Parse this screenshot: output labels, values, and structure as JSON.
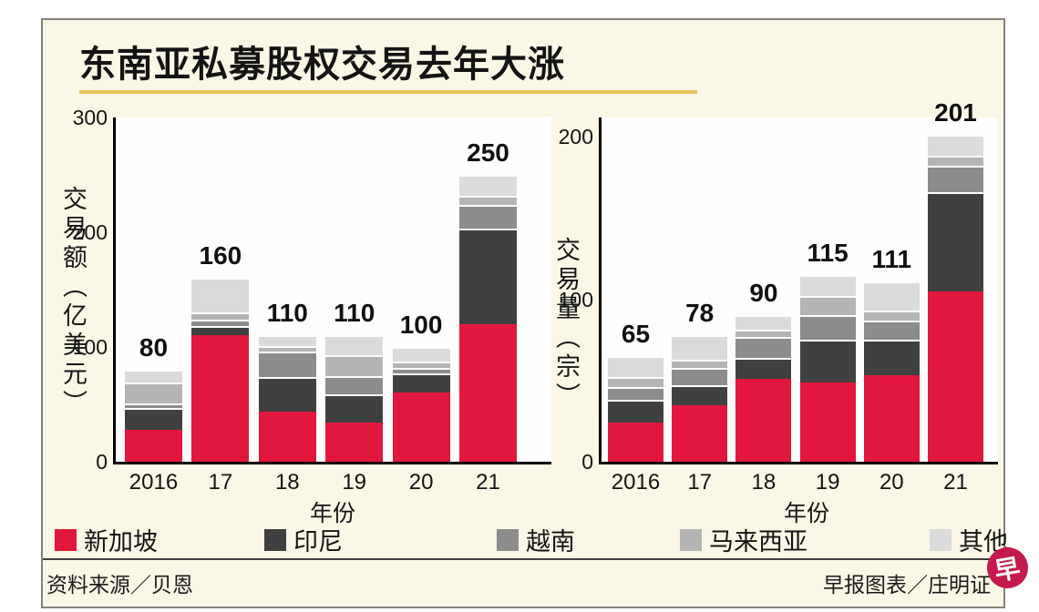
{
  "title": "东南亚私募股权交易去年大涨",
  "chart_data": [
    {
      "type": "bar",
      "stacked": true,
      "ylabel": "交易额（亿美元）",
      "xlabel": "年份",
      "y_ticks": [
        0,
        100,
        200,
        300
      ],
      "ylim": [
        0,
        300
      ],
      "categories": [
        "2016",
        "17",
        "18",
        "19",
        "20",
        "21"
      ],
      "totals": [
        80,
        160,
        110,
        110,
        100,
        250
      ],
      "series": [
        {
          "name": "新加坡",
          "values": [
            28,
            110,
            44,
            34,
            60,
            120
          ]
        },
        {
          "name": "印尼",
          "values": [
            19,
            8,
            30,
            25,
            17,
            83
          ]
        },
        {
          "name": "越南",
          "values": [
            4,
            6,
            22,
            16,
            5,
            21
          ]
        },
        {
          "name": "马来西亚",
          "values": [
            18,
            6,
            5,
            18,
            5,
            8
          ]
        },
        {
          "name": "其他",
          "values": [
            11,
            30,
            9,
            17,
            13,
            18
          ]
        }
      ]
    },
    {
      "type": "bar",
      "stacked": true,
      "ylabel": "交易量（宗）",
      "xlabel": "年份",
      "y_ticks": [
        0,
        100,
        200
      ],
      "ylim": [
        0,
        200
      ],
      "categories": [
        "2016",
        "17",
        "18",
        "19",
        "20",
        "21"
      ],
      "totals": [
        65,
        78,
        90,
        115,
        111,
        201
      ],
      "series": [
        {
          "name": "新加坡",
          "values": [
            24,
            35,
            51,
            49,
            53,
            105
          ]
        },
        {
          "name": "印尼",
          "values": [
            14,
            12,
            13,
            26,
            22,
            61
          ]
        },
        {
          "name": "越南",
          "values": [
            8,
            11,
            13,
            15,
            12,
            16
          ]
        },
        {
          "name": "马来西亚",
          "values": [
            6,
            5,
            4,
            12,
            6,
            6
          ]
        },
        {
          "name": "其他",
          "values": [
            13,
            15,
            9,
            13,
            18,
            13
          ]
        }
      ]
    }
  ],
  "legend": [
    {
      "label": "新加坡",
      "color": "#e2173d"
    },
    {
      "label": "印尼",
      "color": "#404040"
    },
    {
      "label": "越南",
      "color": "#8c8c8c"
    },
    {
      "label": "马来西亚",
      "color": "#b4b4b4"
    },
    {
      "label": "其他",
      "color": "#dbdbdb"
    }
  ],
  "footer": {
    "source": "资料来源／贝恩",
    "credit": "早报图表／庄明证"
  },
  "logo": {
    "text": "早"
  },
  "colors": {
    "accent_red": "#e2173d",
    "title_underline": "#eac55b",
    "card_background": "#faf7e6",
    "divider": "#3f3f3f",
    "logo_background": "#c41a4b"
  }
}
